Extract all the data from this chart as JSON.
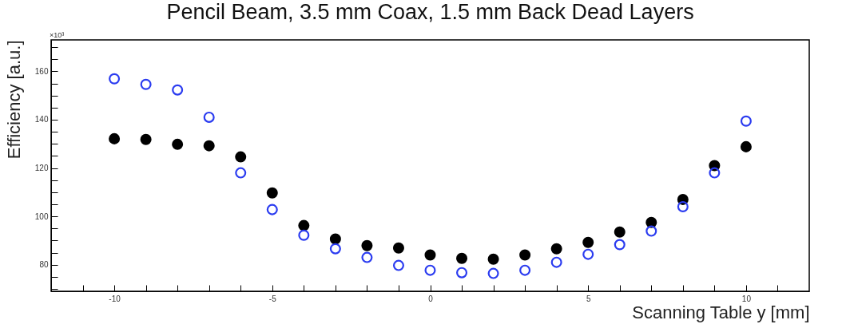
{
  "chart_data": {
    "type": "scatter",
    "title": "Pencil Beam, 3.5 mm Coax, 1.5 mm Back Dead Layers",
    "xlabel": "Scanning Table y [mm]",
    "ylabel": "Efficiency [a.u.]",
    "annotations": [
      "×10³"
    ],
    "x": [
      -10,
      -9,
      -8,
      -7,
      -6,
      -5,
      -4,
      -3,
      -2,
      -1,
      0,
      1,
      2,
      3,
      4,
      5,
      6,
      7,
      8,
      9,
      10
    ],
    "series": [
      {
        "color": "#000000",
        "values": [
          132.1,
          131.8,
          129.8,
          129.2,
          124.6,
          109.7,
          96.2,
          90.6,
          87.9,
          86.9,
          84,
          82.6,
          82.3,
          84,
          86.6,
          89.2,
          93.5,
          97.5,
          107,
          121,
          128.8
        ]
      },
      {
        "color": "#2b3cf0",
        "values": [
          156.9,
          154.6,
          152.3,
          141,
          118,
          102.8,
          92.2,
          86.6,
          83,
          79.7,
          77.7,
          76.7,
          76.4,
          77.7,
          81,
          84.3,
          88.3,
          93.9,
          104,
          118,
          139.4
        ]
      }
    ],
    "marker": "circle",
    "xlim": [
      -12,
      12
    ],
    "ylim": [
      69,
      173
    ],
    "xticks": [
      {
        "value": -12,
        "label": null
      },
      {
        "value": -11,
        "label": null
      },
      -10,
      {
        "value": -9,
        "label": null
      },
      {
        "value": -8,
        "label": null
      },
      {
        "value": -7,
        "label": null
      },
      {
        "value": -6,
        "label": null
      },
      -5,
      {
        "value": -4,
        "label": null
      },
      {
        "value": -3,
        "label": null
      },
      {
        "value": -2,
        "label": null
      },
      {
        "value": -1,
        "label": null
      },
      0,
      {
        "value": 1,
        "label": null
      },
      {
        "value": 2,
        "label": null
      },
      {
        "value": 3,
        "label": null
      },
      {
        "value": 4,
        "label": null
      },
      5,
      {
        "value": 6,
        "label": null
      },
      {
        "value": 7,
        "label": null
      },
      {
        "value": 8,
        "label": null
      },
      {
        "value": 9,
        "label": null
      },
      10,
      {
        "value": 11,
        "label": null
      }
    ],
    "yticks": [
      {
        "value": 70,
        "label": null
      },
      {
        "value": 75,
        "label": null
      },
      80,
      {
        "value": 85,
        "label": null
      },
      {
        "value": 90,
        "label": null
      },
      {
        "value": 95,
        "label": null
      },
      100,
      {
        "value": 105,
        "label": null
      },
      {
        "value": 110,
        "label": null
      },
      {
        "value": 115,
        "label": null
      },
      120,
      {
        "value": 125,
        "label": null
      },
      {
        "value": 130,
        "label": null
      },
      {
        "value": 135,
        "label": null
      },
      140,
      {
        "value": 145,
        "label": null
      },
      {
        "value": 150,
        "label": null
      },
      {
        "value": 155,
        "label": null
      },
      160,
      {
        "value": 165,
        "label": null
      },
      {
        "value": 170,
        "label": null
      }
    ]
  }
}
